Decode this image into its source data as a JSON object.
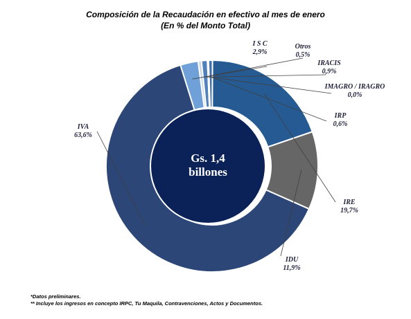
{
  "chart_data": {
    "type": "pie",
    "variant": "donut",
    "title": "Composición de la Recaudación en efectivo al mes de enero",
    "subtitle": "(En % del Monto Total)",
    "center_label": [
      "Gs. 1,4",
      "billones"
    ],
    "slices": [
      {
        "name": "I S C",
        "label": "2,9%",
        "value": 2.9,
        "color": "#6fa0d8"
      },
      {
        "name": "Otros",
        "label": "0,5%",
        "value": 0.5,
        "color": "#c9d7e8"
      },
      {
        "name": "IRACIS",
        "label": "0,9%",
        "value": 0.9,
        "color": "#4f81bd"
      },
      {
        "name": "IMAGRO / IRAGRO",
        "label": "0,0%",
        "value": 0.0,
        "color": "#9bb7dd"
      },
      {
        "name": "IRP",
        "label": "0,6%",
        "value": 0.6,
        "color": "#3f6fa8"
      },
      {
        "name": "IRE",
        "label": "19,7%",
        "value": 19.7,
        "color": "#255a92"
      },
      {
        "name": "IDU",
        "label": "11,9%",
        "value": 11.9,
        "color": "#666666"
      },
      {
        "name": "IVA",
        "label": "63,6%",
        "value": 63.6,
        "color": "#2b4677"
      }
    ]
  },
  "notes": [
    "*Datos preliminares.",
    "** Incluye los ingresos en concepto IRPC, Tu Maquila, Contravenciones, Actos y Documentos."
  ]
}
